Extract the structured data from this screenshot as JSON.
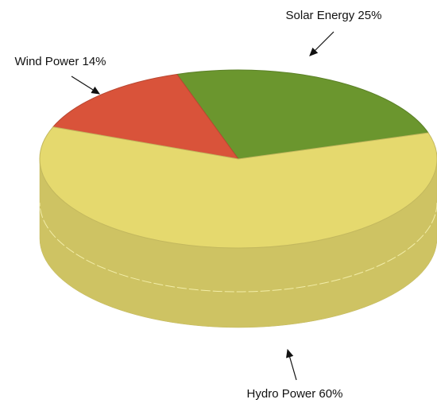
{
  "chart_data": {
    "type": "pie3d",
    "categories": [
      "Solar Energy",
      "Wind Power",
      "Hydro Power"
    ],
    "values": [
      25,
      14,
      60
    ],
    "value_labels": [
      "25%",
      "14%",
      "60%"
    ],
    "colors": [
      "#6b962e",
      "#d9533a",
      "#e5d96e"
    ]
  }
}
